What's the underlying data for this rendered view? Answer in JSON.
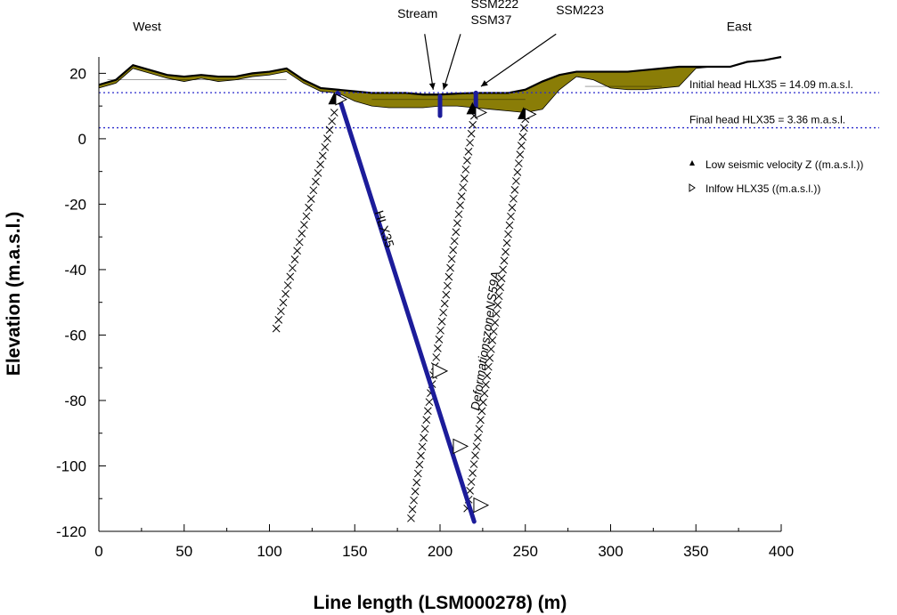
{
  "chart_data": {
    "type": "cross-section",
    "xlabel": "Line length (LSM000278) (m)",
    "ylabel": "Elevation (m.a.s.l.)",
    "xlim": [
      0,
      400
    ],
    "ylim": [
      -120,
      25
    ],
    "x_ticks": [
      0,
      50,
      100,
      150,
      200,
      250,
      300,
      350,
      400
    ],
    "y_ticks": [
      20,
      0,
      -20,
      -40,
      -60,
      -80,
      -100,
      -120
    ],
    "grid": false,
    "legend_placement": "right",
    "surface_profile": {
      "x": [
        0,
        10,
        20,
        30,
        40,
        50,
        60,
        70,
        80,
        90,
        100,
        110,
        120,
        130,
        140,
        150,
        160,
        170,
        180,
        190,
        200,
        210,
        220,
        230,
        240,
        250,
        260,
        270,
        280,
        290,
        300,
        310,
        320,
        330,
        340,
        350,
        360,
        370,
        380,
        390,
        400
      ],
      "y": [
        16.5,
        18,
        22.5,
        21,
        19.5,
        19,
        19.5,
        19,
        19,
        20,
        20.5,
        21.5,
        18,
        15.5,
        15,
        14.5,
        14,
        14,
        14,
        13.5,
        13.5,
        13.8,
        14,
        14,
        14,
        15,
        17.5,
        19.5,
        20.5,
        20.5,
        20.5,
        20.5,
        21,
        21.5,
        22,
        22,
        22,
        22,
        23.5,
        24,
        25
      ]
    },
    "bedrock_profile": {
      "x": [
        0,
        10,
        20,
        30,
        40,
        50,
        60,
        70,
        80,
        90,
        100,
        110,
        120,
        130,
        140,
        150,
        160,
        170,
        180,
        190,
        200,
        210,
        220,
        230,
        240,
        250,
        260,
        270,
        280,
        290,
        300,
        310,
        320,
        330,
        340,
        350,
        360,
        370,
        380,
        390,
        400
      ],
      "y": [
        15.5,
        17,
        21.5,
        20,
        18.5,
        17.5,
        18.5,
        17.5,
        18,
        19,
        19.5,
        20.5,
        17,
        14.5,
        14,
        11.5,
        10,
        9.5,
        9.5,
        9.5,
        10,
        10,
        9.5,
        9,
        8.5,
        8,
        9,
        15,
        19,
        18,
        15.5,
        15,
        15,
        15.5,
        16,
        21.5,
        22,
        22,
        23.5,
        24,
        25
      ]
    },
    "head_levels": [
      {
        "label": "Initial head HLX35 = 14.09 m.a.s.l.",
        "y": 14.09
      },
      {
        "label": "Final head HLX35 = 3.36 m.a.s.l.",
        "y": 3.36
      }
    ],
    "borehole": {
      "name": "HLX35",
      "x": [
        140,
        220
      ],
      "y": [
        14,
        -117
      ]
    },
    "short_boreholes": [
      {
        "x": [
          200,
          200
        ],
        "y": [
          13,
          7
        ]
      },
      {
        "x": [
          221,
          221
        ],
        "y": [
          14,
          8
        ]
      }
    ],
    "crosshatch_zones": [
      {
        "x": [
          138,
          104
        ],
        "y": [
          8,
          -58
        ]
      },
      {
        "x": [
          220,
          183
        ],
        "y": [
          7,
          -116
        ]
      },
      {
        "x": [
          250,
          216
        ],
        "y": [
          6,
          -113
        ]
      }
    ],
    "zone_label": {
      "text": "DeformationszoneNS59A",
      "x": 229,
      "y": -62
    },
    "borehole_label": {
      "text": "HLX35",
      "x": 165,
      "y": -28
    },
    "low_velocity_points": [
      {
        "x": 138,
        "y": 12
      },
      {
        "x": 219,
        "y": 9
      },
      {
        "x": 249,
        "y": 7.5
      }
    ],
    "inflow_points": [
      {
        "x": 142,
        "y": 12
      },
      {
        "x": 224,
        "y": 8
      },
      {
        "x": 253,
        "y": 7.5
      },
      {
        "x": 200,
        "y": -71
      },
      {
        "x": 212,
        "y": -94
      },
      {
        "x": 224,
        "y": -112
      }
    ],
    "annotations": [
      {
        "text": "West",
        "x": 20,
        "y": 33
      },
      {
        "text": "East",
        "x": 368,
        "y": 33
      },
      {
        "text": "Stream",
        "x": 175,
        "y": 37
      },
      {
        "text": "SSM222",
        "x": 218,
        "y": 40
      },
      {
        "text": "SSM37",
        "x": 218,
        "y": 35
      },
      {
        "text": "SSM223",
        "x": 268,
        "y": 38
      }
    ],
    "legend": [
      {
        "label": "Low seismic velocity Z ((m.a.s.l.))",
        "marker": "filled-triangle"
      },
      {
        "label": "Inlfow HLX35 ((m.a.s.l.))",
        "marker": "open-right-triangle"
      }
    ],
    "colors": {
      "soil_fill": "#8a7d07",
      "surface_line": "#000000",
      "borehole": "#1c1c9a",
      "head_line": "#2a2acc",
      "hatch": "#000000"
    }
  }
}
